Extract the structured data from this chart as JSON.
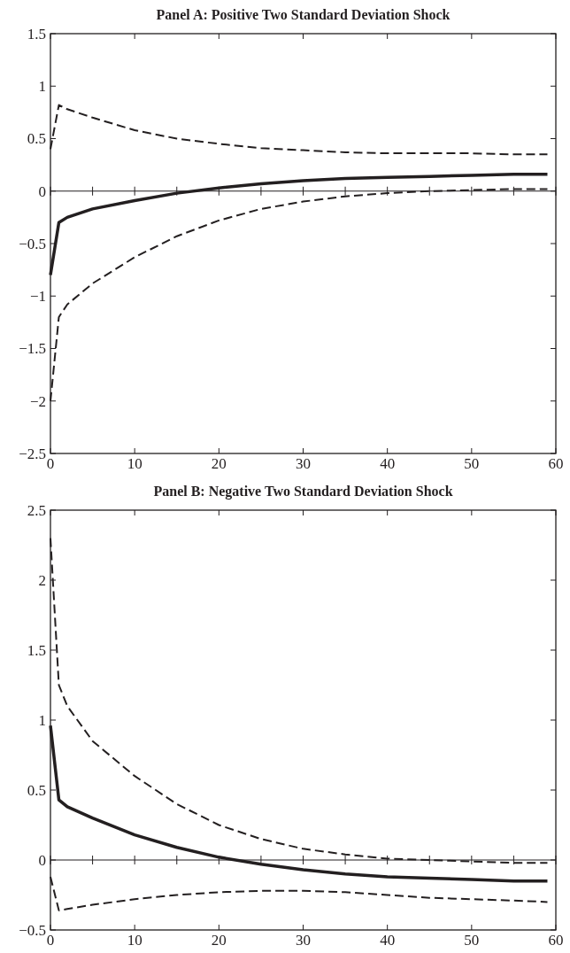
{
  "chart_data": [
    {
      "type": "line",
      "title": "Panel A: Positive Two Standard Deviation Shock",
      "x": [
        0,
        1,
        2,
        5,
        10,
        15,
        20,
        25,
        30,
        35,
        40,
        45,
        50,
        55,
        59
      ],
      "series": [
        {
          "color": "#231f20",
          "line_style": "solid",
          "values": [
            -0.8,
            -0.3,
            -0.25,
            -0.17,
            -0.09,
            -0.02,
            0.03,
            0.07,
            0.1,
            0.12,
            0.13,
            0.14,
            0.15,
            0.16,
            0.16
          ]
        },
        {
          "color": "#231f20",
          "line_style": "dashed",
          "values": [
            0.4,
            0.82,
            0.78,
            0.7,
            0.58,
            0.5,
            0.45,
            0.41,
            0.39,
            0.37,
            0.36,
            0.36,
            0.36,
            0.35,
            0.35
          ]
        },
        {
          "color": "#231f20",
          "line_style": "dashed",
          "values": [
            -2.0,
            -1.2,
            -1.08,
            -0.88,
            -0.63,
            -0.43,
            -0.28,
            -0.17,
            -0.1,
            -0.05,
            -0.02,
            0.0,
            0.01,
            0.02,
            0.02
          ]
        }
      ],
      "xlim": [
        0,
        60
      ],
      "xticks": [
        0,
        10,
        20,
        30,
        40,
        50,
        60
      ],
      "ylim": [
        -2.5,
        1.5
      ],
      "yticks": [
        -2.5,
        -2,
        -1.5,
        -1,
        -0.5,
        0,
        0.5,
        1,
        1.5
      ],
      "ref_lines": [
        {
          "axis": "y",
          "value": 0,
          "color": "#231f20"
        }
      ],
      "grid": false
    },
    {
      "type": "line",
      "title": "Panel B: Negative Two Standard Deviation Shock",
      "x": [
        0,
        1,
        2,
        5,
        10,
        15,
        20,
        25,
        30,
        35,
        40,
        45,
        50,
        55,
        59
      ],
      "series": [
        {
          "color": "#231f20",
          "line_style": "solid",
          "values": [
            0.96,
            0.43,
            0.38,
            0.3,
            0.18,
            0.09,
            0.02,
            -0.03,
            -0.07,
            -0.1,
            -0.12,
            -0.13,
            -0.14,
            -0.15,
            -0.15
          ]
        },
        {
          "color": "#231f20",
          "line_style": "dashed",
          "values": [
            2.3,
            1.25,
            1.1,
            0.85,
            0.6,
            0.4,
            0.25,
            0.15,
            0.08,
            0.04,
            0.01,
            0.0,
            -0.01,
            -0.02,
            -0.02
          ]
        },
        {
          "color": "#231f20",
          "line_style": "dashed",
          "values": [
            -0.12,
            -0.36,
            -0.35,
            -0.32,
            -0.28,
            -0.25,
            -0.23,
            -0.22,
            -0.22,
            -0.23,
            -0.25,
            -0.27,
            -0.28,
            -0.29,
            -0.3
          ]
        }
      ],
      "xlim": [
        0,
        60
      ],
      "xticks": [
        0,
        10,
        20,
        30,
        40,
        50,
        60
      ],
      "ylim": [
        -0.5,
        2.5
      ],
      "yticks": [
        -0.5,
        0,
        0.5,
        1,
        1.5,
        2,
        2.5
      ],
      "ref_lines": [
        {
          "axis": "y",
          "value": 0,
          "color": "#231f20"
        }
      ],
      "grid": false
    }
  ]
}
